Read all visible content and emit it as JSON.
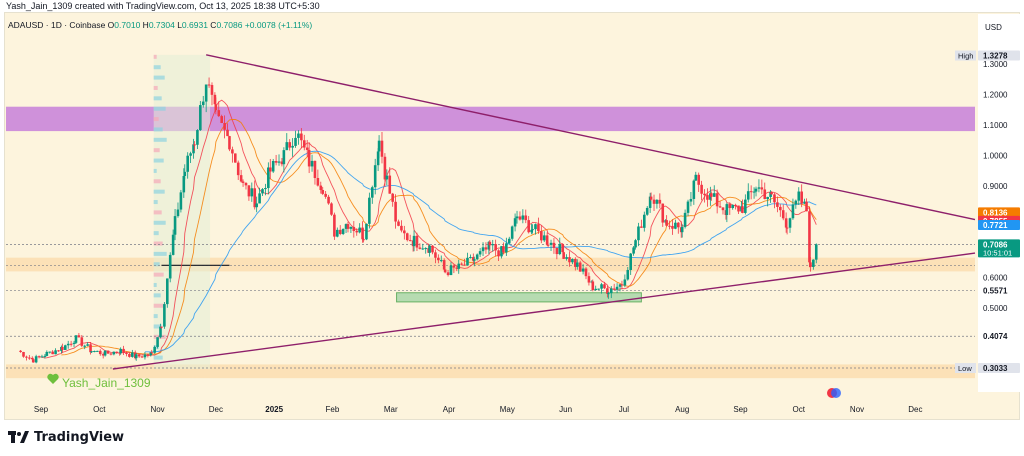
{
  "header": {
    "created_by": "Yash_Jain_1309 created with TradingView.com, Oct 13, 2025 18:38 UTC+5:30"
  },
  "chart_data": {
    "type": "candlestick",
    "symbol_line": {
      "symbol": "ADAUSD · 1D · Coinbase",
      "open_label": "O",
      "open": "0.7010",
      "high_label": "H",
      "high": "0.7304",
      "low_label": "L",
      "low": "0.6931",
      "close_label": "C",
      "close": "0.7086",
      "change": "+0.0078 (+1.11%)"
    },
    "currency": "USD",
    "y_ticks": [
      "1.3000",
      "1.2000",
      "1.1000",
      "1.0000",
      "0.9000",
      "0.6000",
      "0.5000"
    ],
    "x_ticks": [
      "Sep",
      "Oct",
      "Nov",
      "Dec",
      "2025",
      "Feb",
      "Mar",
      "Apr",
      "May",
      "Jun",
      "Jul",
      "Aug",
      "Sep",
      "Oct",
      "Nov",
      "Dec"
    ],
    "price_labels": [
      {
        "text": "High",
        "value": "1.3278",
        "color": "#e0e3eb",
        "fg": "#131722"
      },
      {
        "text": "",
        "value": "0.8136",
        "color": "#f57c00",
        "fg": "#ffffff"
      },
      {
        "text": "",
        "value": "0.7855",
        "color": "#f23645",
        "fg": "#ffffff"
      },
      {
        "text": "",
        "value": "0.7721",
        "color": "#2196f3",
        "fg": "#ffffff"
      },
      {
        "text": "",
        "value": "0.7086",
        "color": "#089981",
        "fg": "#ffffff",
        "sub": "10:51:01"
      },
      {
        "text": "",
        "value": "0.5571",
        "color": "#ffffff",
        "fg": "#131722"
      },
      {
        "text": "",
        "value": "0.4074",
        "color": "#ffffff",
        "fg": "#131722"
      },
      {
        "text": "Low",
        "value": "0.3033",
        "color": "#e0e3eb",
        "fg": "#131722"
      }
    ],
    "author_tag": "Yash_Jain_1309",
    "colors": {
      "up": "#089981",
      "down": "#f23645",
      "trendline": "#8e1f6a",
      "resistance_zone": "#c77fd9",
      "support_zone": "#a5d6a7",
      "ma_fast": "#f23645",
      "ma_mid": "#f57c00",
      "ma_slow": "#2196f3",
      "background": "#fdf4dd"
    },
    "series": [
      {
        "name": "ADAUSD",
        "points": [
          [
            "2024-08-28",
            0.36
          ],
          [
            "2024-09-05",
            0.33
          ],
          [
            "2024-09-12",
            0.35
          ],
          [
            "2024-09-20",
            0.37
          ],
          [
            "2024-09-27",
            0.4
          ],
          [
            "2024-10-05",
            0.36
          ],
          [
            "2024-10-12",
            0.35
          ],
          [
            "2024-10-20",
            0.36
          ],
          [
            "2024-10-28",
            0.34
          ],
          [
            "2024-11-05",
            0.35
          ],
          [
            "2024-11-10",
            0.45
          ],
          [
            "2024-11-13",
            0.6
          ],
          [
            "2024-11-17",
            0.78
          ],
          [
            "2024-11-22",
            0.95
          ],
          [
            "2024-11-27",
            1.05
          ],
          [
            "2024-12-03",
            1.25
          ],
          [
            "2024-12-08",
            1.12
          ],
          [
            "2024-12-15",
            1.05
          ],
          [
            "2024-12-22",
            0.9
          ],
          [
            "2024-12-29",
            0.85
          ],
          [
            "2025-01-05",
            0.95
          ],
          [
            "2025-01-12",
            1.0
          ],
          [
            "2025-01-18",
            1.08
          ],
          [
            "2025-01-25",
            0.98
          ],
          [
            "2025-02-01",
            0.9
          ],
          [
            "2025-02-07",
            0.75
          ],
          [
            "2025-02-14",
            0.78
          ],
          [
            "2025-02-22",
            0.74
          ],
          [
            "2025-03-02",
            1.05
          ],
          [
            "2025-03-06",
            0.92
          ],
          [
            "2025-03-12",
            0.75
          ],
          [
            "2025-03-20",
            0.72
          ],
          [
            "2025-03-28",
            0.7
          ],
          [
            "2025-04-05",
            0.62
          ],
          [
            "2025-04-12",
            0.63
          ],
          [
            "2025-04-20",
            0.66
          ],
          [
            "2025-04-28",
            0.7
          ],
          [
            "2025-05-05",
            0.68
          ],
          [
            "2025-05-12",
            0.8
          ],
          [
            "2025-05-20",
            0.76
          ],
          [
            "2025-05-28",
            0.72
          ],
          [
            "2025-06-05",
            0.68
          ],
          [
            "2025-06-12",
            0.64
          ],
          [
            "2025-06-20",
            0.57
          ],
          [
            "2025-06-28",
            0.56
          ],
          [
            "2025-07-05",
            0.58
          ],
          [
            "2025-07-12",
            0.72
          ],
          [
            "2025-07-20",
            0.88
          ],
          [
            "2025-07-28",
            0.78
          ],
          [
            "2025-08-05",
            0.76
          ],
          [
            "2025-08-12",
            0.92
          ],
          [
            "2025-08-20",
            0.86
          ],
          [
            "2025-08-28",
            0.82
          ],
          [
            "2025-09-05",
            0.83
          ],
          [
            "2025-09-12",
            0.9
          ],
          [
            "2025-09-20",
            0.86
          ],
          [
            "2025-09-28",
            0.78
          ],
          [
            "2025-10-04",
            0.86
          ],
          [
            "2025-10-08",
            0.82
          ],
          [
            "2025-10-10",
            0.62
          ],
          [
            "2025-10-13",
            0.7086
          ]
        ]
      }
    ],
    "annotations": {
      "resistance_zone": [
        1.08,
        1.16
      ],
      "support_zone": [
        0.52,
        0.55
      ],
      "horizontal_dotted": [
        0.7086,
        0.64,
        0.5571,
        0.4074,
        0.3033
      ],
      "trendline_upper": [
        [
          "2024-12-03",
          1.33
        ],
        [
          "2025-12-25",
          0.79
        ]
      ],
      "trendline_lower": [
        [
          "2024-10-16",
          0.3
        ],
        [
          "2025-12-25",
          0.68
        ]
      ]
    }
  },
  "footer": {
    "brand": "TradingView"
  }
}
